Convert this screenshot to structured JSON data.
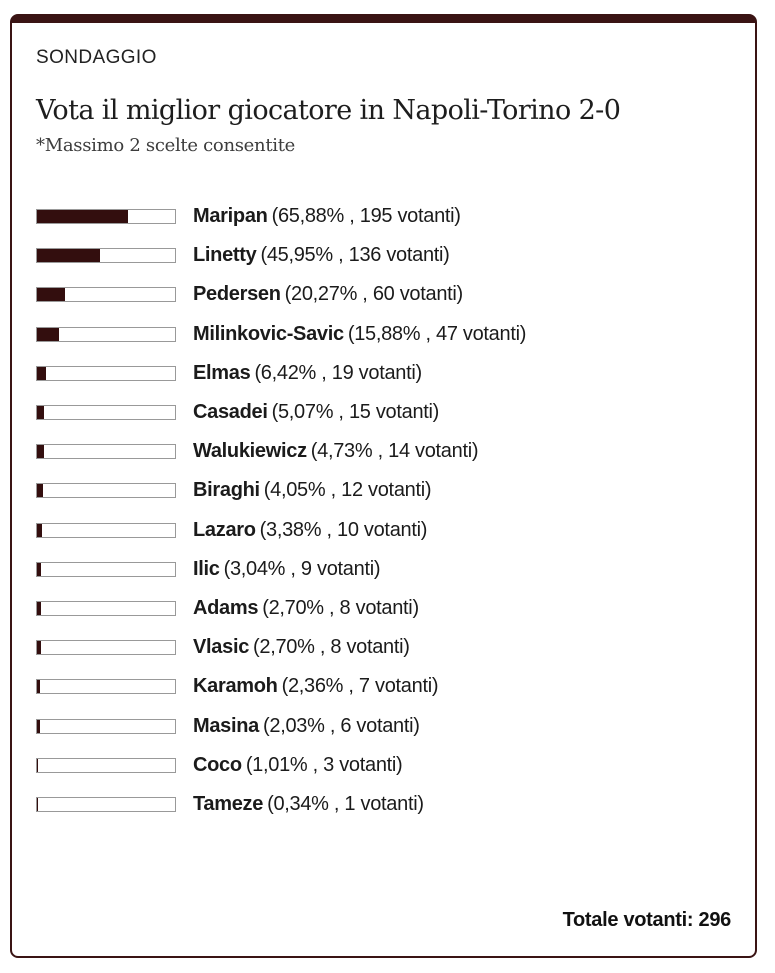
{
  "card": {
    "kicker": "SONDAGGIO",
    "title": "Vota il miglior giocatore in Napoli-Torino 2-0",
    "subtitle": "*Massimo 2 scelte consentite",
    "total_votes_label": "Totale votanti: 296"
  },
  "poll": {
    "options": [
      {
        "name": "Maripan",
        "detail": "(65,88% , 195 votanti)",
        "percent": 65.88
      },
      {
        "name": "Linetty",
        "detail": "(45,95% , 136 votanti)",
        "percent": 45.95
      },
      {
        "name": "Pedersen",
        "detail": "(20,27% , 60 votanti)",
        "percent": 20.27
      },
      {
        "name": "Milinkovic-Savic",
        "detail": "(15,88% , 47 votanti)",
        "percent": 15.88
      },
      {
        "name": "Elmas",
        "detail": "(6,42% , 19 votanti)",
        "percent": 6.42
      },
      {
        "name": "Casadei",
        "detail": "(5,07% , 15 votanti)",
        "percent": 5.07
      },
      {
        "name": "Walukiewicz",
        "detail": "(4,73% , 14 votanti)",
        "percent": 4.73
      },
      {
        "name": "Biraghi",
        "detail": "(4,05% , 12 votanti)",
        "percent": 4.05
      },
      {
        "name": "Lazaro",
        "detail": "(3,38% , 10 votanti)",
        "percent": 3.38
      },
      {
        "name": "Ilic",
        "detail": "(3,04% , 9 votanti)",
        "percent": 3.04
      },
      {
        "name": "Adams",
        "detail": "(2,70% , 8 votanti)",
        "percent": 2.7
      },
      {
        "name": "Vlasic",
        "detail": "(2,70% , 8 votanti)",
        "percent": 2.7
      },
      {
        "name": "Karamoh",
        "detail": "(2,36% , 7 votanti)",
        "percent": 2.36
      },
      {
        "name": "Masina",
        "detail": "(2,03% , 6 votanti)",
        "percent": 2.03
      },
      {
        "name": "Coco",
        "detail": "(1,01% , 3 votanti)",
        "percent": 1.01
      },
      {
        "name": "Tameze",
        "detail": "(0,34% , 1 votanti)",
        "percent": 0.34
      }
    ]
  },
  "chart_data": {
    "type": "bar",
    "orientation": "horizontal",
    "title": "Vota il miglior giocatore in Napoli-Torino 2-0",
    "subtitle": "*Massimo 2 scelte consentite",
    "categories": [
      "Maripan",
      "Linetty",
      "Pedersen",
      "Milinkovic-Savic",
      "Elmas",
      "Casadei",
      "Walukiewicz",
      "Biraghi",
      "Lazaro",
      "Ilic",
      "Adams",
      "Vlasic",
      "Karamoh",
      "Masina",
      "Coco",
      "Tameze"
    ],
    "series": [
      {
        "name": "percent_votes",
        "values": [
          65.88,
          45.95,
          20.27,
          15.88,
          6.42,
          5.07,
          4.73,
          4.05,
          3.38,
          3.04,
          2.7,
          2.7,
          2.36,
          2.03,
          1.01,
          0.34
        ]
      },
      {
        "name": "votanti",
        "values": [
          195,
          136,
          60,
          47,
          19,
          15,
          14,
          12,
          10,
          9,
          8,
          8,
          7,
          6,
          3,
          1
        ]
      }
    ],
    "total_votes": 296,
    "xlim": [
      0,
      100
    ],
    "grid": false,
    "legend": false
  },
  "colors": {
    "card_border": "#3a1414",
    "bar_fill": "#330e0e",
    "bar_track_border": "#999999",
    "text": "#1b1b1b"
  }
}
